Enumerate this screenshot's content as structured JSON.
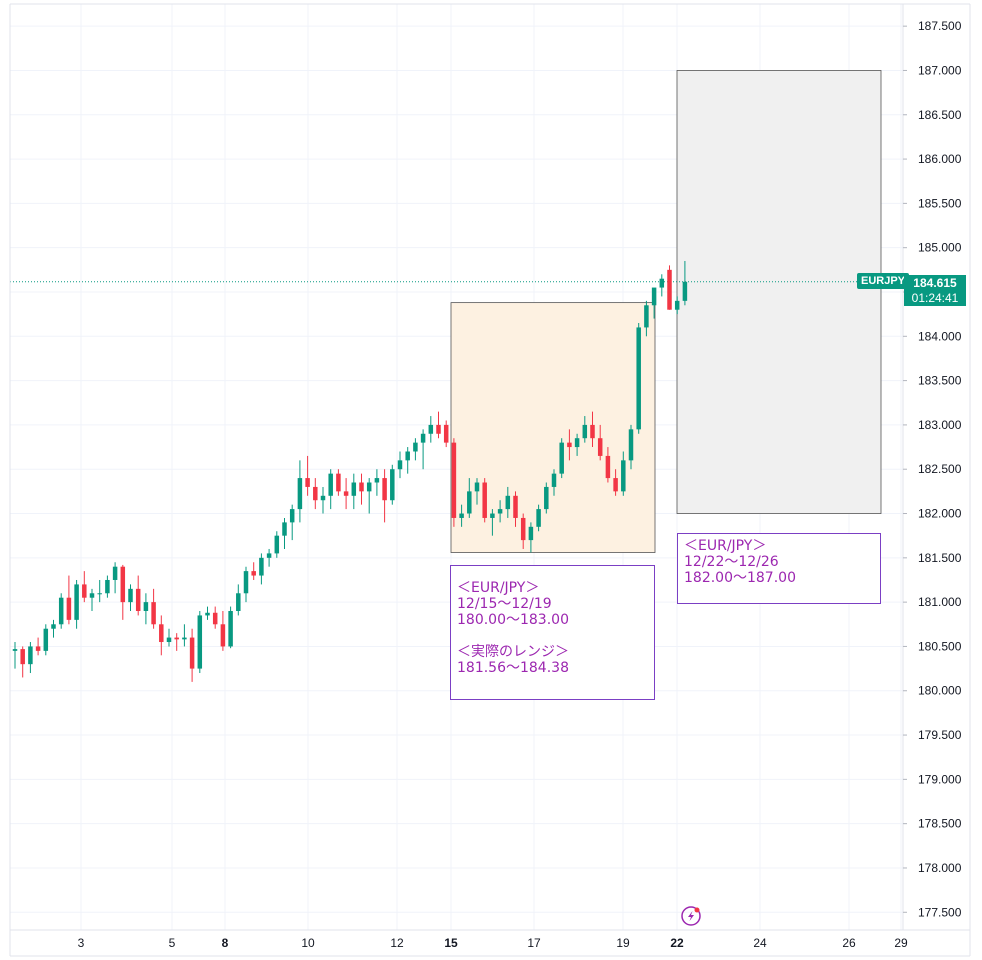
{
  "chart_data": {
    "type": "candlestick",
    "symbol": "EURJPY",
    "last_price": "184.615",
    "countdown": "01:24:41",
    "ylim": [
      177.3,
      187.75
    ],
    "y_ticks": [
      "187.500",
      "187.000",
      "186.500",
      "186.000",
      "185.500",
      "185.000",
      "184.500",
      "184.000",
      "183.500",
      "183.000",
      "182.500",
      "182.000",
      "181.500",
      "181.000",
      "180.500",
      "180.000",
      "179.500",
      "179.000",
      "178.500",
      "178.000",
      "177.500"
    ],
    "x_ticks": [
      {
        "label": "3",
        "bold": false
      },
      {
        "label": "5",
        "bold": false
      },
      {
        "label": "8",
        "bold": true
      },
      {
        "label": "10",
        "bold": false
      },
      {
        "label": "12",
        "bold": false
      },
      {
        "label": "15",
        "bold": true
      },
      {
        "label": "17",
        "bold": false
      },
      {
        "label": "19",
        "bold": false
      },
      {
        "label": "22",
        "bold": true
      },
      {
        "label": "24",
        "bold": false
      },
      {
        "label": "26",
        "bold": false
      },
      {
        "label": "29",
        "bold": false
      }
    ],
    "candles": [
      [
        180.45,
        180.55,
        180.25,
        180.47
      ],
      [
        180.47,
        180.5,
        180.15,
        180.3
      ],
      [
        180.3,
        180.55,
        180.2,
        180.5
      ],
      [
        180.5,
        180.6,
        180.4,
        180.45
      ],
      [
        180.45,
        180.75,
        180.4,
        180.7
      ],
      [
        180.7,
        180.8,
        180.6,
        180.75
      ],
      [
        180.75,
        181.1,
        180.7,
        181.05
      ],
      [
        181.05,
        181.3,
        180.75,
        180.8
      ],
      [
        180.8,
        181.25,
        180.7,
        181.2
      ],
      [
        181.2,
        181.35,
        181.0,
        181.05
      ],
      [
        181.05,
        181.15,
        180.9,
        181.1
      ],
      [
        181.1,
        181.25,
        181.0,
        181.1
      ],
      [
        181.1,
        181.3,
        181.05,
        181.25
      ],
      [
        181.25,
        181.45,
        181.1,
        181.4
      ],
      [
        181.4,
        181.42,
        180.8,
        181.0
      ],
      [
        181.0,
        181.2,
        180.9,
        181.15
      ],
      [
        181.15,
        181.3,
        180.85,
        180.9
      ],
      [
        180.9,
        181.1,
        180.75,
        181.0
      ],
      [
        181.0,
        181.15,
        180.7,
        180.75
      ],
      [
        180.75,
        180.85,
        180.4,
        180.55
      ],
      [
        180.55,
        180.7,
        180.5,
        180.6
      ],
      [
        180.6,
        180.65,
        180.45,
        180.58
      ],
      [
        180.58,
        180.75,
        180.5,
        180.6
      ],
      [
        180.6,
        180.7,
        180.1,
        180.25
      ],
      [
        180.25,
        180.9,
        180.2,
        180.85
      ],
      [
        180.85,
        180.95,
        180.8,
        180.88
      ],
      [
        180.88,
        180.95,
        180.7,
        180.75
      ],
      [
        180.75,
        180.9,
        180.45,
        180.5
      ],
      [
        180.5,
        180.95,
        180.48,
        180.9
      ],
      [
        180.9,
        181.2,
        180.85,
        181.1
      ],
      [
        181.1,
        181.4,
        181.0,
        181.35
      ],
      [
        181.35,
        181.45,
        181.25,
        181.3
      ],
      [
        181.3,
        181.55,
        181.2,
        181.5
      ],
      [
        181.5,
        181.6,
        181.4,
        181.55
      ],
      [
        181.55,
        181.8,
        181.5,
        181.75
      ],
      [
        181.75,
        181.95,
        181.6,
        181.9
      ],
      [
        181.9,
        182.1,
        181.7,
        182.05
      ],
      [
        182.05,
        182.6,
        181.9,
        182.4
      ],
      [
        182.4,
        182.65,
        182.2,
        182.3
      ],
      [
        182.3,
        182.4,
        182.05,
        182.15
      ],
      [
        182.15,
        182.3,
        182.0,
        182.2
      ],
      [
        182.2,
        182.5,
        182.05,
        182.45
      ],
      [
        182.45,
        182.5,
        182.2,
        182.25
      ],
      [
        182.25,
        182.4,
        182.05,
        182.2
      ],
      [
        182.2,
        182.45,
        182.05,
        182.35
      ],
      [
        182.35,
        182.45,
        182.1,
        182.25
      ],
      [
        182.25,
        182.4,
        182.0,
        182.35
      ],
      [
        182.35,
        182.5,
        182.2,
        182.4
      ],
      [
        182.4,
        182.5,
        181.9,
        182.15
      ],
      [
        182.15,
        182.55,
        182.1,
        182.5
      ],
      [
        182.5,
        182.7,
        182.4,
        182.6
      ],
      [
        182.6,
        182.75,
        182.45,
        182.7
      ],
      [
        182.7,
        182.85,
        182.6,
        182.8
      ],
      [
        182.8,
        182.95,
        182.5,
        182.9
      ],
      [
        182.9,
        183.1,
        182.8,
        183.0
      ],
      [
        183.0,
        183.15,
        182.85,
        182.9
      ],
      [
        183.0,
        183.05,
        182.75,
        182.8
      ],
      [
        182.8,
        182.85,
        181.85,
        181.95
      ],
      [
        181.95,
        182.1,
        181.85,
        182.0
      ],
      [
        182.0,
        182.4,
        181.95,
        182.25
      ],
      [
        182.25,
        182.4,
        182.1,
        182.35
      ],
      [
        182.35,
        182.4,
        181.9,
        181.95
      ],
      [
        181.95,
        182.05,
        181.75,
        182.0
      ],
      [
        182.0,
        182.15,
        181.9,
        182.05
      ],
      [
        182.05,
        182.3,
        181.95,
        182.2
      ],
      [
        182.2,
        182.25,
        181.85,
        181.95
      ],
      [
        181.95,
        182.0,
        181.6,
        181.7
      ],
      [
        181.7,
        181.9,
        181.56,
        181.85
      ],
      [
        181.85,
        182.1,
        181.8,
        182.05
      ],
      [
        182.05,
        182.35,
        182.0,
        182.3
      ],
      [
        182.3,
        182.5,
        182.2,
        182.45
      ],
      [
        182.45,
        182.85,
        182.4,
        182.8
      ],
      [
        182.8,
        182.95,
        182.6,
        182.75
      ],
      [
        182.75,
        182.9,
        182.65,
        182.85
      ],
      [
        182.85,
        183.1,
        182.8,
        183.0
      ],
      [
        183.0,
        183.15,
        182.75,
        182.85
      ],
      [
        182.85,
        183.0,
        182.6,
        182.65
      ],
      [
        182.65,
        182.75,
        182.35,
        182.4
      ],
      [
        182.4,
        182.5,
        182.2,
        182.25
      ],
      [
        182.25,
        182.7,
        182.2,
        182.6
      ],
      [
        182.6,
        183.0,
        182.5,
        182.95
      ],
      [
        182.95,
        184.15,
        182.9,
        184.1
      ],
      [
        184.1,
        184.4,
        184.0,
        184.35
      ],
      [
        184.35,
        184.5,
        184.2,
        184.55
      ],
      [
        184.55,
        184.7,
        184.45,
        184.65
      ],
      [
        184.75,
        184.8,
        184.3,
        184.3
      ],
      [
        184.3,
        184.45,
        184.25,
        184.4
      ],
      [
        184.4,
        184.85,
        184.35,
        184.615
      ]
    ],
    "highlight_box": {
      "x_start": "15",
      "x_end": "19",
      "y_min": 181.56,
      "y_max": 184.38
    },
    "forecast_box": {
      "x_start": "22",
      "x_end": "26",
      "y_min": 182.0,
      "y_max": 187.0
    },
    "annotations": [
      {
        "lines": [
          "＜EUR/JPY＞",
          "12/15〜12/19",
          "180.00〜183.00",
          "",
          "＜実際のレンジ＞",
          "181.56〜184.38"
        ]
      },
      {
        "lines": [
          "＜EUR/JPY＞",
          "12/22〜12/26",
          "182.00〜187.00"
        ]
      }
    ],
    "up_color": "#089981",
    "down_color": "#f23645"
  }
}
